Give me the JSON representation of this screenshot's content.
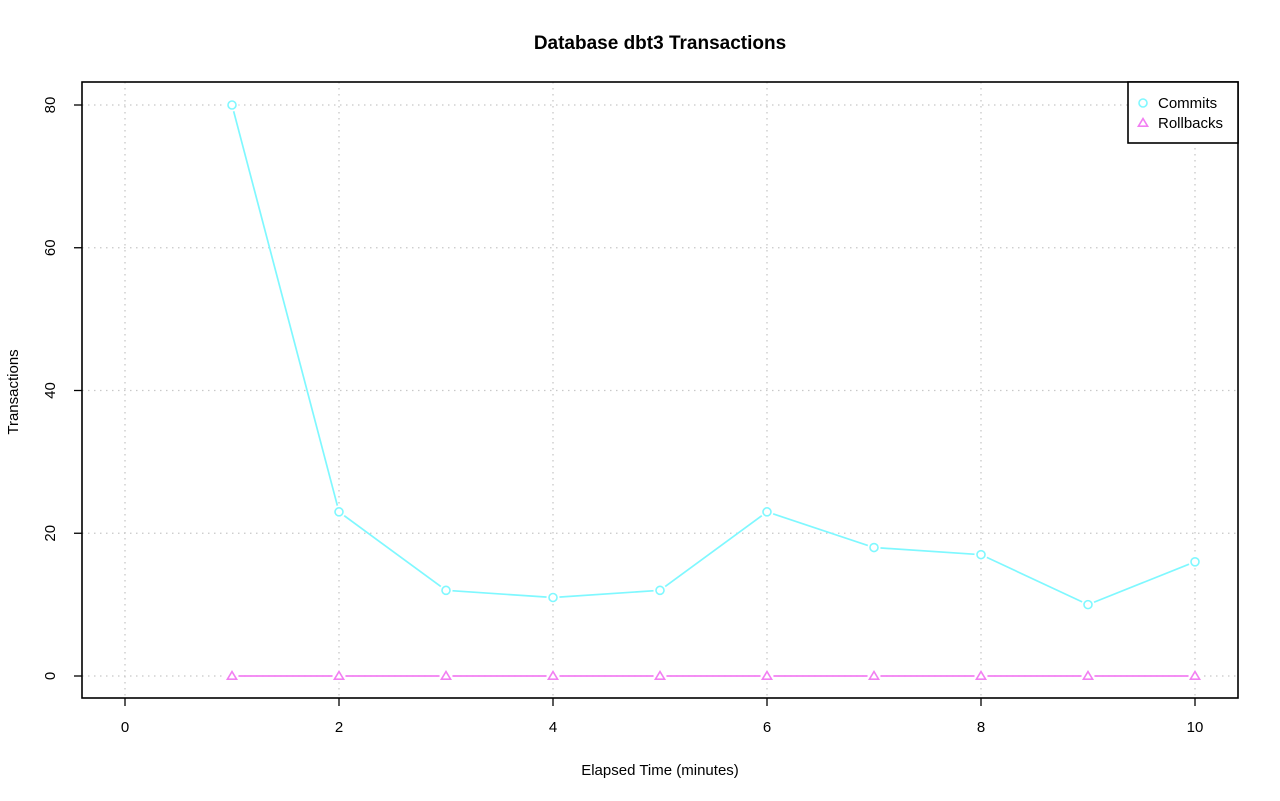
{
  "chart_data": {
    "type": "line",
    "title": "Database dbt3 Transactions",
    "xlabel": "Elapsed Time (minutes)",
    "ylabel": "Transactions",
    "xlim": [
      0,
      10
    ],
    "ylim": [
      0,
      80
    ],
    "xticks": [
      0,
      2,
      4,
      6,
      8,
      10
    ],
    "yticks": [
      0,
      20,
      40,
      60,
      80
    ],
    "grid": true,
    "legend_position": "top-right",
    "x": [
      1,
      2,
      3,
      4,
      5,
      6,
      7,
      8,
      9,
      10
    ],
    "series": [
      {
        "name": "Commits",
        "values": [
          80,
          23,
          12,
          11,
          12,
          23,
          18,
          17,
          10,
          16
        ],
        "color": "#7ff8ff",
        "marker": "circle"
      },
      {
        "name": "Rollbacks",
        "values": [
          0,
          0,
          0,
          0,
          0,
          0,
          0,
          0,
          0,
          0
        ],
        "color": "#f27ff2",
        "marker": "triangle"
      }
    ]
  }
}
